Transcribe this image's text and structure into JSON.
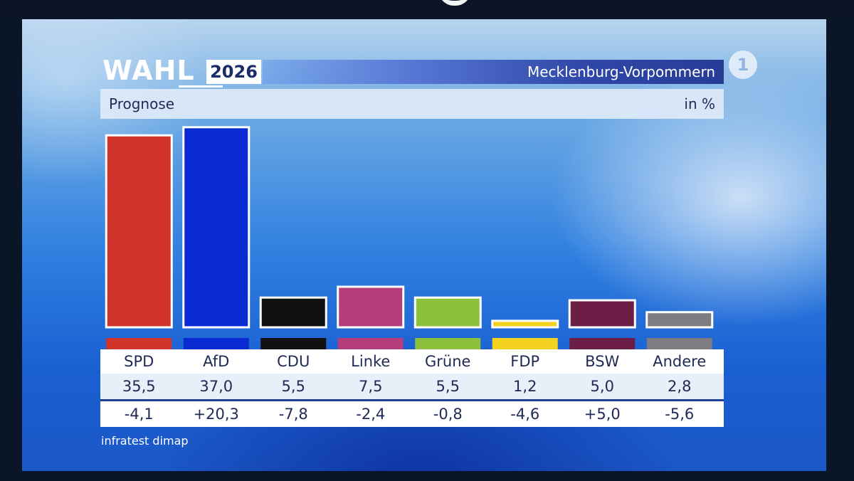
{
  "header": {
    "brand": "WAHL",
    "year": "2026",
    "region": "Mecklenburg-Vorpommern",
    "subtitle": "Prognose",
    "unit": "in %"
  },
  "logo": {
    "icon": "ard-one-logo",
    "text": "1"
  },
  "chart_data": {
    "type": "bar",
    "title": "Prognose",
    "ylabel": "in %",
    "categories": [
      "SPD",
      "AfD",
      "CDU",
      "Linke",
      "Grüne",
      "FDP",
      "BSW",
      "Andere"
    ],
    "values": [
      35.5,
      37.0,
      5.5,
      7.5,
      5.5,
      1.2,
      5.0,
      2.8
    ],
    "value_labels": [
      "35,5",
      "37,0",
      "5,5",
      "7,5",
      "5,5",
      "1,2",
      "5,0",
      "2,8"
    ],
    "changes": [
      -4.1,
      20.3,
      -7.8,
      -2.4,
      -0.8,
      -4.6,
      5.0,
      -5.6
    ],
    "change_labels": [
      "-4,1",
      "+20,3",
      "-7,8",
      "-2,4",
      "-0,8",
      "-4,6",
      "+5,0",
      "-5,6"
    ],
    "colors": [
      "#d0342a",
      "#0a2ad4",
      "#111111",
      "#b53d7c",
      "#8cc03c",
      "#f2d21e",
      "#6c1e46",
      "#7c7c82"
    ],
    "grid": false,
    "legend": "none"
  },
  "source": "infratest dimap"
}
